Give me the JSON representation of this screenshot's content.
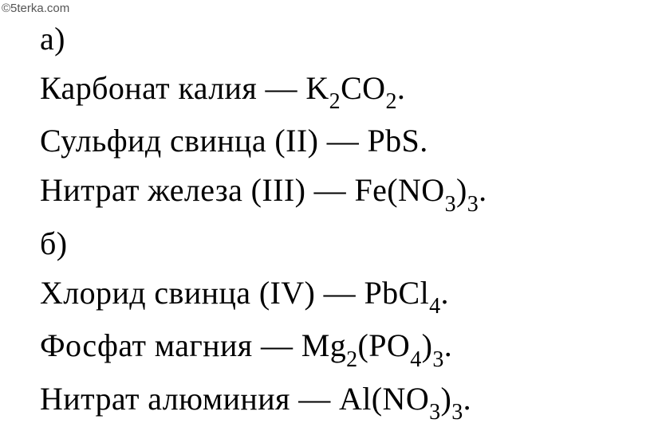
{
  "watermark": "©5terka.com",
  "lines": [
    {
      "parts": [
        {
          "t": "text",
          "v": "а)"
        }
      ]
    },
    {
      "parts": [
        {
          "t": "text",
          "v": "Карбонат калия — K"
        },
        {
          "t": "sub",
          "v": "2"
        },
        {
          "t": "text",
          "v": "CO"
        },
        {
          "t": "sub",
          "v": "2"
        },
        {
          "t": "text",
          "v": "."
        }
      ]
    },
    {
      "parts": [
        {
          "t": "text",
          "v": "Сульфид свинца (II) — PbS."
        }
      ]
    },
    {
      "parts": [
        {
          "t": "text",
          "v": "Нитрат железа (III) — Fe(NO"
        },
        {
          "t": "sub",
          "v": "3"
        },
        {
          "t": "text",
          "v": ")"
        },
        {
          "t": "sub",
          "v": "3"
        },
        {
          "t": "text",
          "v": "."
        }
      ]
    },
    {
      "parts": [
        {
          "t": "text",
          "v": "б)"
        }
      ]
    },
    {
      "parts": [
        {
          "t": "text",
          "v": "Хлорид свинца (IV) — PbCl"
        },
        {
          "t": "sub",
          "v": "4"
        },
        {
          "t": "text",
          "v": "."
        }
      ]
    },
    {
      "parts": [
        {
          "t": "text",
          "v": "Фосфат магния — Mg"
        },
        {
          "t": "sub",
          "v": "2"
        },
        {
          "t": "text",
          "v": "(PO"
        },
        {
          "t": "sub",
          "v": "4"
        },
        {
          "t": "text",
          "v": ")"
        },
        {
          "t": "sub",
          "v": "3"
        },
        {
          "t": "text",
          "v": "."
        }
      ]
    },
    {
      "parts": [
        {
          "t": "text",
          "v": "Нитрат алюминия — Al(NO"
        },
        {
          "t": "sub",
          "v": "3"
        },
        {
          "t": "text",
          "v": ")"
        },
        {
          "t": "sub",
          "v": "3"
        },
        {
          "t": "text",
          "v": "."
        }
      ]
    }
  ]
}
